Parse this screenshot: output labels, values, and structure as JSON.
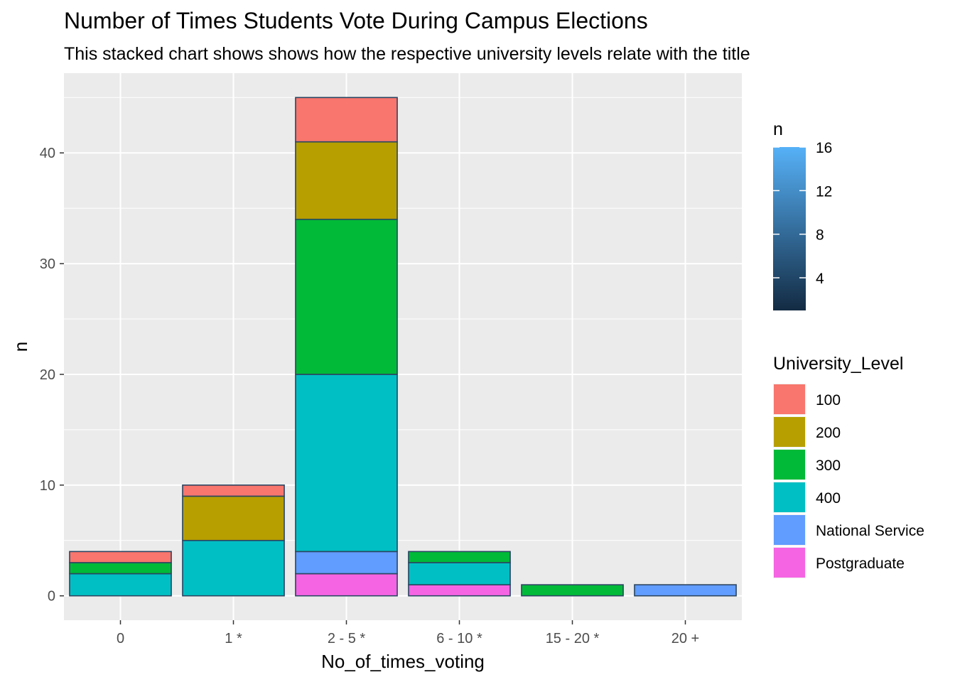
{
  "chart_data": {
    "type": "bar",
    "stacked": true,
    "title": "Number of Times Students Vote During Campus Elections",
    "subtitle": "This stacked chart shows shows how the respective university levels relate with the title",
    "xlabel": "No_of_times_voting",
    "ylabel": "n",
    "ylim": [
      -2.2,
      47.2
    ],
    "yticks": [
      0,
      10,
      20,
      30,
      40
    ],
    "grid": true,
    "categories": [
      "0",
      "1 *",
      "2 - 5 *",
      "6 - 10 *",
      "15 - 20 *",
      "20 +"
    ],
    "series": [
      {
        "name": "Postgraduate",
        "color": "#F564E3",
        "values": [
          0,
          0,
          2,
          1,
          0,
          0
        ]
      },
      {
        "name": "National Service",
        "color": "#619CFF",
        "values": [
          0,
          0,
          2,
          0,
          0,
          1
        ]
      },
      {
        "name": "400",
        "color": "#00BFC4",
        "values": [
          2,
          5,
          16,
          2,
          0,
          0
        ]
      },
      {
        "name": "300",
        "color": "#00BA38",
        "values": [
          1,
          0,
          14,
          1,
          1,
          0
        ]
      },
      {
        "name": "200",
        "color": "#B79F00",
        "values": [
          0,
          4,
          7,
          0,
          0,
          0
        ]
      },
      {
        "name": "100",
        "color": "#F8766D",
        "values": [
          1,
          1,
          4,
          0,
          0,
          0
        ]
      }
    ],
    "legend_fill": {
      "title": "University_Level",
      "items": [
        {
          "label": "100",
          "color": "#F8766D"
        },
        {
          "label": "200",
          "color": "#B79F00"
        },
        {
          "label": "300",
          "color": "#00BA38"
        },
        {
          "label": "400",
          "color": "#00BFC4"
        },
        {
          "label": "National Service",
          "color": "#619CFF"
        },
        {
          "label": "Postgraduate",
          "color": "#F564E3"
        }
      ]
    },
    "legend_color": {
      "title": "n",
      "range": [
        1,
        16
      ],
      "ticks": [
        4,
        8,
        12,
        16
      ],
      "low_color": "#132B43",
      "high_color": "#56B1F7"
    },
    "legend_placement": "right"
  }
}
